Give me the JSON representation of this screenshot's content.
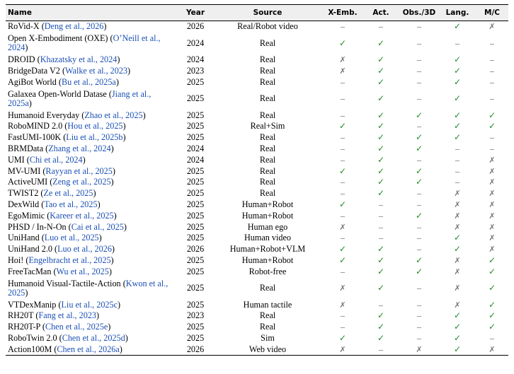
{
  "columns": {
    "name": "Name",
    "year": "Year",
    "source": "Source",
    "xemb": "X-Emb.",
    "act": "Act.",
    "obs": "Obs./3D",
    "lang": "Lang.",
    "mc": "M/C"
  },
  "marks": {
    "check": "✓",
    "cross": "✗",
    "dash": "–"
  },
  "colors": {
    "check": "#1f8a26",
    "cross": "#777777",
    "reference": "#1a4fb5",
    "header_bg": "#efefef"
  },
  "rows": [
    {
      "name": "RoVid-X",
      "ref": "Deng et al., 2026",
      "year": "2026",
      "source": "Real/Robot video",
      "xemb": "–",
      "act": "–",
      "obs": "–",
      "lang": "✓",
      "mc": "✗"
    },
    {
      "name": "Open X-Embodiment (OXE)",
      "ref": "O’Neill et al., 2024",
      "year": "2024",
      "source": "Real",
      "xemb": "✓",
      "act": "✓",
      "obs": "–",
      "lang": "–",
      "mc": "–",
      "tall": true
    },
    {
      "name": "DROID",
      "ref": "Khazatsky et al., 2024",
      "year": "2024",
      "source": "Real",
      "xemb": "✗",
      "act": "✓",
      "obs": "–",
      "lang": "✓",
      "mc": "–"
    },
    {
      "name": "BridgeData V2",
      "ref": "Walke et al., 2023",
      "year": "2023",
      "source": "Real",
      "xemb": "✗",
      "act": "✓",
      "obs": "–",
      "lang": "✓",
      "mc": "–"
    },
    {
      "name": "AgiBot World",
      "ref": "Bu et al., 2025a",
      "year": "2025",
      "source": "Real",
      "xemb": "–",
      "act": "✓",
      "obs": "–",
      "lang": "✓",
      "mc": "–"
    },
    {
      "name": "Galaxea Open-World Datase",
      "ref": "Jiang et al., 2025a",
      "year": "2025",
      "source": "Real",
      "xemb": "–",
      "act": "✓",
      "obs": "–",
      "lang": "✓",
      "mc": "–",
      "tall": true
    },
    {
      "name": "Humanoid Everyday",
      "ref": "Zhao et al., 2025",
      "year": "2025",
      "source": "Real",
      "xemb": "–",
      "act": "✓",
      "obs": "✓",
      "lang": "✓",
      "mc": "✓"
    },
    {
      "name": "RoboMIND 2.0",
      "ref": "Hou et al., 2025",
      "year": "2025",
      "source": "Real+Sim",
      "xemb": "✓",
      "act": "✓",
      "obs": "–",
      "lang": "✓",
      "mc": "✓"
    },
    {
      "name": "FastUMI-100K",
      "ref": "Liu et al., 2025b",
      "year": "2025",
      "source": "Real",
      "xemb": "–",
      "act": "✓",
      "obs": "✓",
      "lang": "✓",
      "mc": "–"
    },
    {
      "name": "BRMData",
      "ref": "Zhang et al., 2024",
      "year": "2024",
      "source": "Real",
      "xemb": "–",
      "act": "✓",
      "obs": "✓",
      "lang": "–",
      "mc": "–"
    },
    {
      "name": "UMI",
      "ref": "Chi et al., 2024",
      "year": "2024",
      "source": "Real",
      "xemb": "–",
      "act": "✓",
      "obs": "–",
      "lang": "–",
      "mc": "✗"
    },
    {
      "name": "MV-UMI",
      "ref": "Rayyan et al., 2025",
      "year": "2025",
      "source": "Real",
      "xemb": "✓",
      "act": "✓",
      "obs": "✓",
      "lang": "–",
      "mc": "✗"
    },
    {
      "name": "ActiveUMI",
      "ref": "Zeng et al., 2025",
      "year": "2025",
      "source": "Real",
      "xemb": "–",
      "act": "✓",
      "obs": "✓",
      "lang": "–",
      "mc": "✗"
    },
    {
      "name": "TWIST2",
      "ref": "Ze et al., 2025",
      "year": "2025",
      "source": "Real",
      "xemb": "–",
      "act": "✓",
      "obs": "–",
      "lang": "✗",
      "mc": "✗"
    },
    {
      "name": "DexWild",
      "ref": "Tao et al., 2025",
      "year": "2025",
      "source": "Human+Robot",
      "xemb": "✓",
      "act": "–",
      "obs": "–",
      "lang": "✗",
      "mc": "✗"
    },
    {
      "name": "EgoMimic",
      "ref": "Kareer et al., 2025",
      "year": "2025",
      "source": "Human+Robot",
      "xemb": "–",
      "act": "–",
      "obs": "✓",
      "lang": "✗",
      "mc": "✗"
    },
    {
      "name": "PHSD / In-N-On",
      "ref": "Cai et al., 2025",
      "year": "2025",
      "source": "Human ego",
      "xemb": "✗",
      "act": "–",
      "obs": "–",
      "lang": "✗",
      "mc": "✗"
    },
    {
      "name": "UniHand",
      "ref": "Luo et al., 2025",
      "year": "2025",
      "source": "Human video",
      "xemb": "–",
      "act": "–",
      "obs": "–",
      "lang": "✓",
      "mc": "✗"
    },
    {
      "name": "UniHand 2.0",
      "ref": "Luo et al., 2026",
      "year": "2026",
      "source": "Human+Robot+VLM",
      "xemb": "✓",
      "act": "✓",
      "obs": "–",
      "lang": "✓",
      "mc": "✗"
    },
    {
      "name": "Hoi!",
      "ref": "Engelbracht et al., 2025",
      "year": "2025",
      "source": "Human+Robot",
      "xemb": "✓",
      "act": "✓",
      "obs": "✓",
      "lang": "✗",
      "mc": "✓"
    },
    {
      "name": "FreeTacMan",
      "ref": "Wu et al., 2025",
      "year": "2025",
      "source": "Robot-free",
      "xemb": "–",
      "act": "✓",
      "obs": "✓",
      "lang": "✗",
      "mc": "✓"
    },
    {
      "name": "Humanoid Visual-Tactile-Action",
      "ref": "Kwon et al., 2025",
      "year": "2025",
      "source": "Real",
      "xemb": "✗",
      "act": "✓",
      "obs": "–",
      "lang": "✗",
      "mc": "✓",
      "tall": true
    },
    {
      "name": "VTDexManip",
      "ref": "Liu et al., 2025c",
      "year": "2025",
      "source": "Human tactile",
      "xemb": "✗",
      "act": "–",
      "obs": "–",
      "lang": "✗",
      "mc": "✓"
    },
    {
      "name": "RH20T",
      "ref": "Fang et al., 2023",
      "year": "2023",
      "source": "Real",
      "xemb": "–",
      "act": "✓",
      "obs": "–",
      "lang": "✓",
      "mc": "✓"
    },
    {
      "name": "RH20T-P",
      "ref": "Chen et al., 2025e",
      "year": "2025",
      "source": "Real",
      "xemb": "–",
      "act": "✓",
      "obs": "–",
      "lang": "✓",
      "mc": "✓"
    },
    {
      "name": "RoboTwin 2.0",
      "ref": "Chen et al., 2025d",
      "year": "2025",
      "source": "Sim",
      "xemb": "✓",
      "act": "✓",
      "obs": "–",
      "lang": "✓",
      "mc": "–"
    },
    {
      "name": "Action100M",
      "ref": "Chen et al., 2026a",
      "year": "2026",
      "source": "Web video",
      "xemb": "✗",
      "act": "–",
      "obs": "✗",
      "lang": "✓",
      "mc": "✗"
    }
  ]
}
